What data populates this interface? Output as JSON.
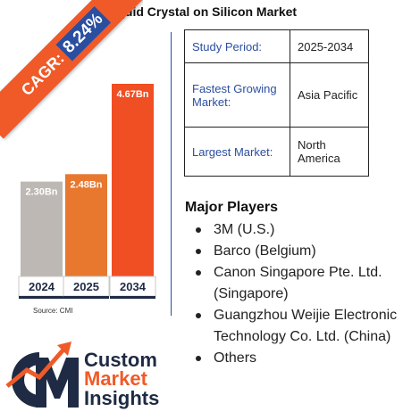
{
  "title": "Liquid Crystal on Silicon Market",
  "cagr": {
    "label": "CAGR:",
    "value": "8.24%"
  },
  "chart_data": {
    "type": "bar",
    "categories": [
      "2024",
      "2025",
      "2034"
    ],
    "values": [
      2.3,
      2.48,
      4.67
    ],
    "data_labels": [
      "2.30Bn",
      "2.48Bn",
      "4.67Bn"
    ],
    "bar_colors": [
      "#bdb8b3",
      "#e8782e",
      "#f04e23"
    ],
    "unit": "Bn",
    "title": "",
    "xlabel": "",
    "ylabel": "",
    "ylim": [
      0,
      4.67
    ],
    "grid": false,
    "legend": "none"
  },
  "source": "Source: CMI",
  "info_table": [
    {
      "key": "Study Period:",
      "value": "2025-2034"
    },
    {
      "key": "Fastest Growing Market:",
      "value": "Asia Pacific"
    },
    {
      "key": "Largest Market:",
      "value": "North America"
    }
  ],
  "players": {
    "heading": "Major Players",
    "items": [
      "3M (U.S.)",
      "Barco (Belgium)",
      "Canon Singapore Pte. Ltd. (Singapore)",
      "Guangzhou Weijie Electronic Technology Co. Ltd. (China)",
      "Others"
    ]
  },
  "logo": {
    "line1": "Custom",
    "line2": "Market",
    "line3": "Insights"
  },
  "colors": {
    "accent_blue": "#2a4ea0",
    "accent_orange": "#f05a28",
    "navy": "#1f2b44"
  }
}
